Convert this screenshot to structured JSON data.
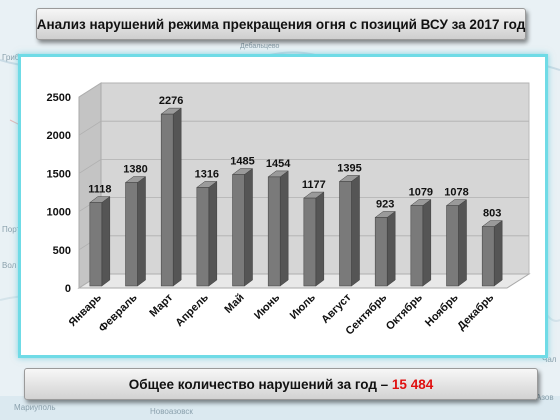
{
  "header": {
    "title": "Анализ нарушений режима прекращения огня с позиций ВСУ за 2017 год"
  },
  "footer": {
    "total_label": "Общее количество нарушений за год – ",
    "total_value": "15 484"
  },
  "background_map": {
    "labels": [
      "Дебальцево",
      "Новоазовск",
      "Мариуполь",
      "Азов",
      "Чал",
      "Вол",
      "Грибово",
      "Порт"
    ]
  },
  "colors": {
    "bar_front": "#7a7a7a",
    "bar_side": "#555555",
    "bar_top": "#9a9a9a",
    "chart_border": "#6fdbe6",
    "total_value": "#e01010"
  },
  "chart_data": {
    "type": "bar",
    "title": "",
    "xlabel": "",
    "ylabel": "",
    "categories": [
      "Январь",
      "Февраль",
      "Март",
      "Апрель",
      "Май",
      "Июнь",
      "Июль",
      "Август",
      "Сентябрь",
      "Октябрь",
      "Ноябрь",
      "Декабрь"
    ],
    "values": [
      1118,
      1380,
      2276,
      1316,
      1485,
      1454,
      1177,
      1395,
      923,
      1079,
      1078,
      803
    ],
    "ylim": [
      0,
      2500
    ],
    "yticks": [
      0,
      500,
      1000,
      1500,
      2000,
      2500
    ],
    "grid": true,
    "legend": "none",
    "style": "3d-columns"
  }
}
